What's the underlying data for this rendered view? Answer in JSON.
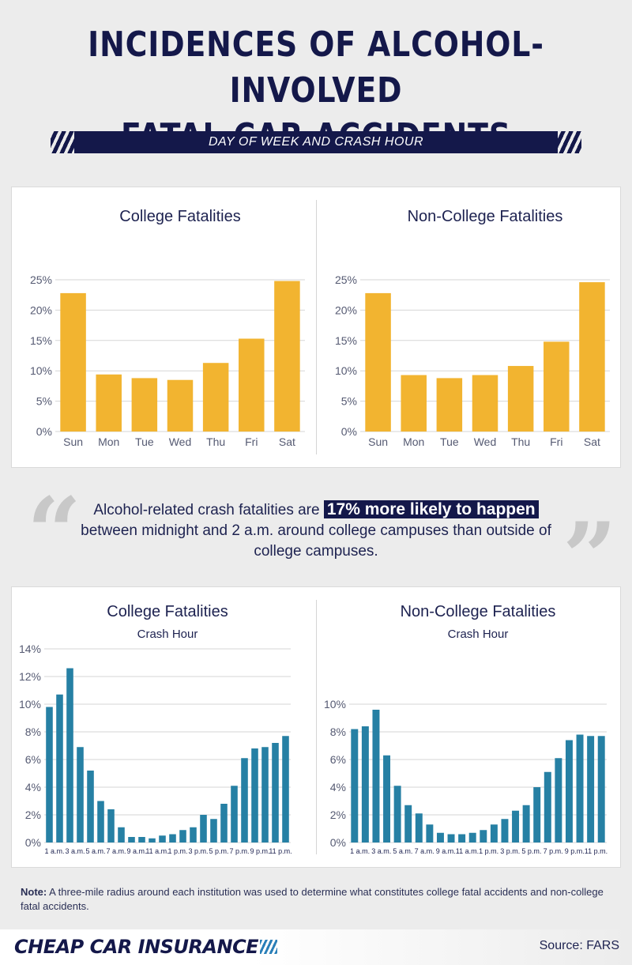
{
  "header": {
    "title_line1": "INCIDENCES OF ALCOHOL-INVOLVED",
    "title_line2": "FATAL CAR ACCIDENTS",
    "banner": "DAY OF WEEK AND CRASH HOUR"
  },
  "quote": {
    "before": "Alcohol-related crash fatalities are ",
    "highlight": "17% more likely to happen",
    "after": "between midnight and 2 a.m. around college campuses than outside of college campuses."
  },
  "note": {
    "label": "Note:",
    "text": " A three-mile radius around each institution was used to determine what constitutes college fatal accidents and non-college fatal accidents."
  },
  "footer": {
    "logo": "CHEAP CAR INSURANCE",
    "source": "Source: FARS"
  },
  "colors": {
    "navy": "#14184a",
    "bar_yellow": "#f2b430",
    "bar_teal": "#2680a4"
  },
  "chart_data": [
    {
      "type": "bar",
      "title": "College Fatalities",
      "categories": [
        "Sun",
        "Mon",
        "Tue",
        "Wed",
        "Thu",
        "Fri",
        "Sat"
      ],
      "values": [
        22.8,
        9.4,
        8.8,
        8.5,
        11.3,
        15.3,
        24.8
      ],
      "ylim": [
        0,
        25
      ],
      "yticks": [
        "0%",
        "5%",
        "10%",
        "15%",
        "20%",
        "25%"
      ],
      "grid": true
    },
    {
      "type": "bar",
      "title": "Non-College Fatalities",
      "categories": [
        "Sun",
        "Mon",
        "Tue",
        "Wed",
        "Thu",
        "Fri",
        "Sat"
      ],
      "values": [
        22.8,
        9.3,
        8.8,
        9.3,
        10.8,
        14.8,
        24.6
      ],
      "ylim": [
        0,
        25
      ],
      "yticks": [
        "0%",
        "5%",
        "10%",
        "15%",
        "20%",
        "25%"
      ],
      "grid": true
    },
    {
      "type": "bar",
      "title": "College Fatalities",
      "subtitle": "Crash Hour",
      "x": [
        "1 a.m.",
        "2 a.m.",
        "3 a.m.",
        "4 a.m.",
        "5 a.m.",
        "6 a.m.",
        "7 a.m.",
        "8 a.m.",
        "9 a.m.",
        "10 a.m.",
        "11 a.m.",
        "12 p.m.",
        "1 p.m.",
        "2 p.m.",
        "3 p.m.",
        "4 p.m.",
        "5 p.m.",
        "6 p.m.",
        "7 p.m.",
        "8 p.m.",
        "9 p.m.",
        "10 p.m.",
        "11 p.m.",
        "12 a.m."
      ],
      "xtick_labels": [
        "1 a.m.",
        "3 a.m.",
        "5 a.m.",
        "7 a.m.",
        "9 a.m.",
        "11 a.m.",
        "1 p.m.",
        "3 p.m.",
        "5 p.m.",
        "7 p.m.",
        "9 p.m.",
        "11 p.m."
      ],
      "values": [
        9.8,
        10.7,
        12.6,
        6.9,
        5.2,
        3.0,
        2.4,
        1.1,
        0.4,
        0.4,
        0.3,
        0.5,
        0.6,
        0.9,
        1.1,
        2.0,
        1.7,
        2.8,
        4.1,
        6.1,
        6.8,
        6.9,
        7.2,
        7.7
      ],
      "ylim": [
        0,
        14
      ],
      "yticks": [
        "0%",
        "2%",
        "4%",
        "6%",
        "8%",
        "10%",
        "12%",
        "14%"
      ],
      "grid": true
    },
    {
      "type": "bar",
      "title": "Non-College Fatalities",
      "subtitle": "Crash Hour",
      "x": [
        "1 a.m.",
        "2 a.m.",
        "3 a.m.",
        "4 a.m.",
        "5 a.m.",
        "6 a.m.",
        "7 a.m.",
        "8 a.m.",
        "9 a.m.",
        "10 a.m.",
        "11 a.m.",
        "12 p.m.",
        "1 p.m.",
        "2 p.m.",
        "3 p.m.",
        "4 p.m.",
        "5 p.m.",
        "6 p.m.",
        "7 p.m.",
        "8 p.m.",
        "9 p.m.",
        "10 p.m.",
        "11 p.m.",
        "12 a.m."
      ],
      "xtick_labels": [
        "1 a.m.",
        "3 a.m.",
        "5 a.m.",
        "7 a.m.",
        "9 a.m.",
        "11 a.m.",
        "1 p.m.",
        "3 p.m.",
        "5 p.m.",
        "7 p.m.",
        "9 p.m.",
        "11 p.m."
      ],
      "values": [
        8.2,
        8.4,
        9.6,
        6.3,
        4.1,
        2.7,
        2.1,
        1.3,
        0.7,
        0.6,
        0.6,
        0.7,
        0.9,
        1.3,
        1.7,
        2.3,
        2.7,
        4.0,
        5.1,
        6.1,
        7.4,
        7.8,
        7.7,
        7.7
      ],
      "ylim": [
        0,
        10
      ],
      "yticks": [
        "0%",
        "2%",
        "4%",
        "6%",
        "8%",
        "10%"
      ],
      "grid": true
    }
  ]
}
